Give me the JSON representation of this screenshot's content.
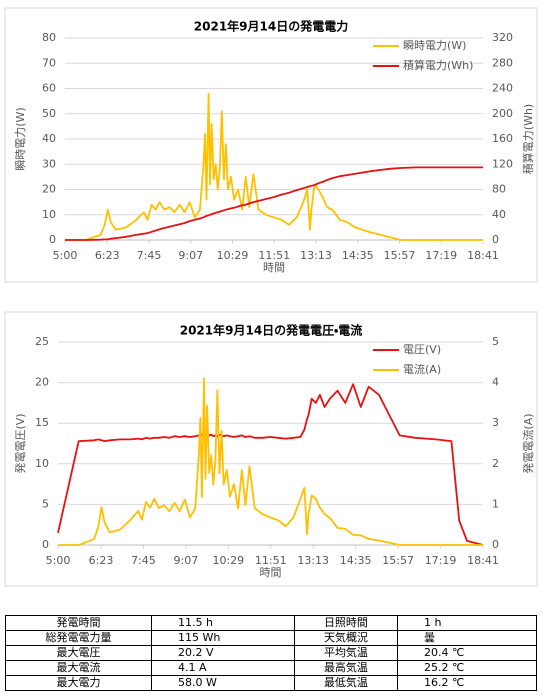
{
  "chart_data": [
    {
      "type": "line",
      "title": "2021年9月14日の発電電力",
      "xlabel": "時間",
      "ylabel": "瞬時電力(W)",
      "y2label": "積算電力(Wh)",
      "xlim": [
        300,
        1121
      ],
      "xticks": [
        {
          "value": 300,
          "label": "5:00"
        },
        {
          "value": 383,
          "label": "6:23"
        },
        {
          "value": 465,
          "label": "7:45"
        },
        {
          "value": 547,
          "label": "9:07"
        },
        {
          "value": 629,
          "label": "10:29"
        },
        {
          "value": 711,
          "label": "11:51"
        },
        {
          "value": 793,
          "label": "13:13"
        },
        {
          "value": 875,
          "label": "14:35"
        },
        {
          "value": 957,
          "label": "15:57"
        },
        {
          "value": 1039,
          "label": "17:19"
        },
        {
          "value": 1121,
          "label": "18:41"
        }
      ],
      "ylim": [
        0,
        80
      ],
      "yticks": [
        0,
        10,
        20,
        30,
        40,
        50,
        60,
        70,
        80
      ],
      "y2lim": [
        0,
        320
      ],
      "y2ticks": [
        0,
        40,
        80,
        120,
        160,
        200,
        240,
        280,
        320
      ],
      "grid": true,
      "legend": "upper right",
      "x": [
        300,
        340,
        370,
        378,
        384,
        390,
        400,
        420,
        440,
        455,
        462,
        470,
        478,
        486,
        495,
        505,
        515,
        525,
        535,
        545,
        555,
        565,
        572,
        575,
        578,
        582,
        585,
        588,
        592,
        596,
        600,
        604,
        608,
        612,
        616,
        620,
        626,
        632,
        640,
        648,
        655,
        662,
        670,
        680,
        695,
        710,
        725,
        740,
        755,
        768,
        776,
        781,
        784,
        790,
        798,
        806,
        815,
        825,
        840,
        855,
        870,
        885,
        900,
        920,
        940,
        960,
        990,
        1030,
        1060,
        1075,
        1090,
        1121
      ],
      "series": [
        {
          "name": "瞬時電力(W)",
          "color": "#ffc000",
          "values": [
            0,
            0,
            2,
            6,
            12,
            7,
            4,
            5,
            8,
            11,
            8,
            14,
            12,
            15,
            12,
            13,
            11,
            14,
            11,
            15,
            9,
            12,
            30,
            42,
            16,
            58,
            22,
            46,
            24,
            30,
            20,
            28,
            51,
            24,
            38,
            20,
            25,
            16,
            20,
            12,
            25,
            13,
            26,
            12,
            10,
            9,
            8,
            6,
            9,
            15,
            20,
            4,
            12,
            22,
            20,
            17,
            13,
            12,
            8,
            7,
            5,
            4,
            3,
            2,
            1,
            0,
            0,
            0,
            0,
            0,
            0,
            0
          ]
        },
        {
          "name": "積算電力(Wh)",
          "color": "#e81010",
          "axis": "y2",
          "values": [
            0,
            0,
            0.5,
            1,
            1,
            2,
            3,
            5,
            8,
            10,
            11,
            13,
            15,
            17,
            19,
            21,
            23,
            25,
            27,
            30,
            32,
            34,
            36,
            37,
            38,
            39,
            40,
            41,
            42,
            43,
            44,
            45,
            46,
            47,
            48,
            49,
            50,
            51,
            53,
            55,
            56,
            58,
            60,
            62,
            65,
            68,
            72,
            75,
            79,
            82,
            84,
            85,
            86,
            87,
            90,
            92,
            95,
            98,
            101,
            103,
            105,
            107,
            109,
            111,
            113,
            114,
            115,
            115,
            115,
            115,
            115,
            115
          ]
        }
      ]
    },
    {
      "type": "line",
      "title": "2021年9月14日の発電電圧・電流",
      "xlabel": "時間",
      "ylabel": "発電電圧(V)",
      "y2label": "発電電流(A)",
      "xlim": [
        300,
        1121
      ],
      "xticks": [
        {
          "value": 300,
          "label": "5:00"
        },
        {
          "value": 383,
          "label": "6:23"
        },
        {
          "value": 465,
          "label": "7:45"
        },
        {
          "value": 547,
          "label": "9:07"
        },
        {
          "value": 629,
          "label": "10:29"
        },
        {
          "value": 711,
          "label": "11:51"
        },
        {
          "value": 793,
          "label": "13:13"
        },
        {
          "value": 875,
          "label": "14:35"
        },
        {
          "value": 957,
          "label": "15:57"
        },
        {
          "value": 1039,
          "label": "17:19"
        },
        {
          "value": 1121,
          "label": "18:41"
        }
      ],
      "ylim": [
        0,
        25
      ],
      "yticks": [
        0,
        5,
        10,
        15,
        20,
        25
      ],
      "y2lim": [
        0,
        5
      ],
      "y2ticks": [
        0,
        1,
        2,
        3,
        4,
        5
      ],
      "grid": true,
      "legend": "upper right",
      "x": [
        300,
        340,
        370,
        378,
        384,
        390,
        400,
        420,
        440,
        455,
        462,
        470,
        478,
        486,
        495,
        505,
        515,
        525,
        535,
        545,
        555,
        565,
        572,
        575,
        578,
        582,
        585,
        588,
        592,
        596,
        600,
        604,
        608,
        612,
        616,
        620,
        626,
        632,
        640,
        648,
        655,
        662,
        670,
        680,
        695,
        710,
        725,
        740,
        755,
        768,
        776,
        781,
        784,
        790,
        798,
        806,
        815,
        825,
        840,
        855,
        870,
        885,
        900,
        920,
        940,
        960,
        990,
        1030,
        1060,
        1075,
        1090,
        1121
      ],
      "series": [
        {
          "name": "電圧(V)",
          "color": "#e81010",
          "values": [
            1.5,
            12.8,
            12.9,
            13,
            12.9,
            12.8,
            12.9,
            13,
            13,
            13.1,
            13,
            13.2,
            13.1,
            13.2,
            13.2,
            13.3,
            13.2,
            13.4,
            13.3,
            13.4,
            13.3,
            13.4,
            13.5,
            13.4,
            13.6,
            13.3,
            13.5,
            13.4,
            13.5,
            13.6,
            13.4,
            13.5,
            13.4,
            13.6,
            13.5,
            13.4,
            13.5,
            13.4,
            13.3,
            13.4,
            13.5,
            13.3,
            13.4,
            13.2,
            13.2,
            13.3,
            13.2,
            13.1,
            13.2,
            13.3,
            14.2,
            15.5,
            16,
            18,
            17.5,
            18.5,
            17,
            18,
            19,
            17.5,
            19.8,
            17,
            19.5,
            18.5,
            16,
            13.5,
            13.2,
            13,
            12.8,
            3,
            0.5,
            0
          ]
        },
        {
          "name": "電流(A)",
          "color": "#ffc000",
          "axis": "y2",
          "values": [
            0,
            0,
            0.15,
            0.46,
            0.93,
            0.55,
            0.31,
            0.38,
            0.62,
            0.84,
            0.62,
            1.06,
            0.92,
            1.14,
            0.91,
            0.98,
            0.83,
            1.04,
            0.83,
            1.12,
            0.68,
            0.9,
            2.22,
            3.13,
            1.18,
            4.1,
            1.63,
            3.43,
            1.78,
            2.21,
            1.49,
            2.07,
            3.81,
            1.76,
            2.81,
            1.49,
            1.85,
            1.19,
            1.5,
            0.9,
            1.85,
            0.98,
            1.94,
            0.91,
            0.76,
            0.68,
            0.61,
            0.46,
            0.68,
            1.13,
            1.41,
            0.26,
            0.75,
            1.22,
            1.14,
            0.92,
            0.76,
            0.67,
            0.42,
            0.4,
            0.25,
            0.24,
            0.15,
            0.11,
            0.06,
            0,
            0,
            0,
            0,
            0,
            0,
            0
          ]
        }
      ]
    }
  ],
  "table": {
    "rows": [
      [
        "発電時間",
        "11.5 h",
        "日照時間",
        "1 h"
      ],
      [
        "総発電電力量",
        "115 Wh",
        "天気概況",
        "曇"
      ],
      [
        "最大電圧",
        "20.2 V",
        "平均気温",
        "20.4 ℃"
      ],
      [
        "最大電流",
        "4.1 A",
        "最高気温",
        "25.2 ℃"
      ],
      [
        "最大電力",
        "58.0 W",
        "最低気温",
        "16.2 ℃"
      ]
    ]
  }
}
